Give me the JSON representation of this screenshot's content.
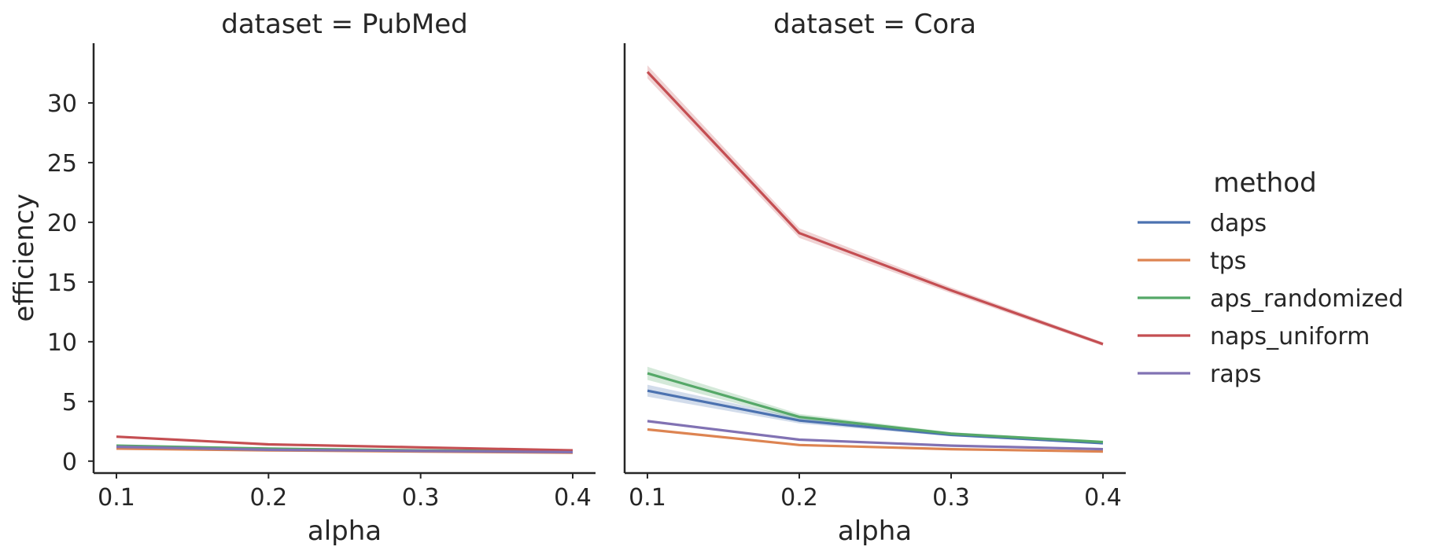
{
  "chart_data": {
    "type": "line",
    "xlabel": "alpha",
    "ylabel": "efficiency",
    "x": [
      0.1,
      0.2,
      0.3,
      0.4
    ],
    "x_ticks": [
      "0.1",
      "0.2",
      "0.3",
      "0.4"
    ],
    "y_ticks": [
      "0",
      "5",
      "10",
      "15",
      "20",
      "25",
      "30"
    ],
    "xlim": [
      0.085,
      0.415
    ],
    "ylim": [
      -1.0,
      35.0
    ],
    "grid": false,
    "legend": {
      "title": "method",
      "placement": "right",
      "entries": [
        "daps",
        "tps",
        "aps_randomized",
        "naps_uniform",
        "raps"
      ]
    },
    "colors": {
      "daps": "#4c72b0",
      "tps": "#dd8452",
      "aps_randomized": "#55a868",
      "naps_uniform": "#c44e52",
      "raps": "#8172b3"
    },
    "panels": [
      {
        "title": "dataset = PubMed",
        "series": [
          {
            "name": "daps",
            "values": [
              1.25,
              1.0,
              0.85,
              0.75
            ],
            "band": [
              0.05,
              0.05,
              0.05,
              0.05
            ]
          },
          {
            "name": "tps",
            "values": [
              1.05,
              0.9,
              0.8,
              0.7
            ],
            "band": [
              0.03,
              0.03,
              0.03,
              0.03
            ]
          },
          {
            "name": "aps_randomized",
            "values": [
              1.3,
              1.05,
              0.9,
              0.8
            ],
            "band": [
              0.05,
              0.05,
              0.05,
              0.05
            ]
          },
          {
            "name": "naps_uniform",
            "values": [
              2.05,
              1.4,
              1.15,
              0.9
            ],
            "band": [
              0.08,
              0.06,
              0.05,
              0.05
            ]
          },
          {
            "name": "raps",
            "values": [
              1.2,
              0.95,
              0.85,
              0.75
            ],
            "band": [
              0.04,
              0.04,
              0.04,
              0.04
            ]
          }
        ]
      },
      {
        "title": "dataset = Cora",
        "series": [
          {
            "name": "daps",
            "values": [
              5.9,
              3.4,
              2.2,
              1.5
            ],
            "band": [
              0.5,
              0.25,
              0.12,
              0.08
            ]
          },
          {
            "name": "tps",
            "values": [
              2.65,
              1.35,
              1.0,
              0.8
            ],
            "band": [
              0.08,
              0.06,
              0.05,
              0.05
            ]
          },
          {
            "name": "aps_randomized",
            "values": [
              7.35,
              3.7,
              2.3,
              1.6
            ],
            "band": [
              0.55,
              0.25,
              0.12,
              0.08
            ]
          },
          {
            "name": "naps_uniform",
            "values": [
              32.6,
              19.1,
              14.3,
              9.8
            ],
            "band": [
              0.55,
              0.4,
              0.25,
              0.15
            ]
          },
          {
            "name": "raps",
            "values": [
              3.35,
              1.8,
              1.3,
              1.0
            ],
            "band": [
              0.1,
              0.07,
              0.05,
              0.05
            ]
          }
        ]
      }
    ]
  }
}
